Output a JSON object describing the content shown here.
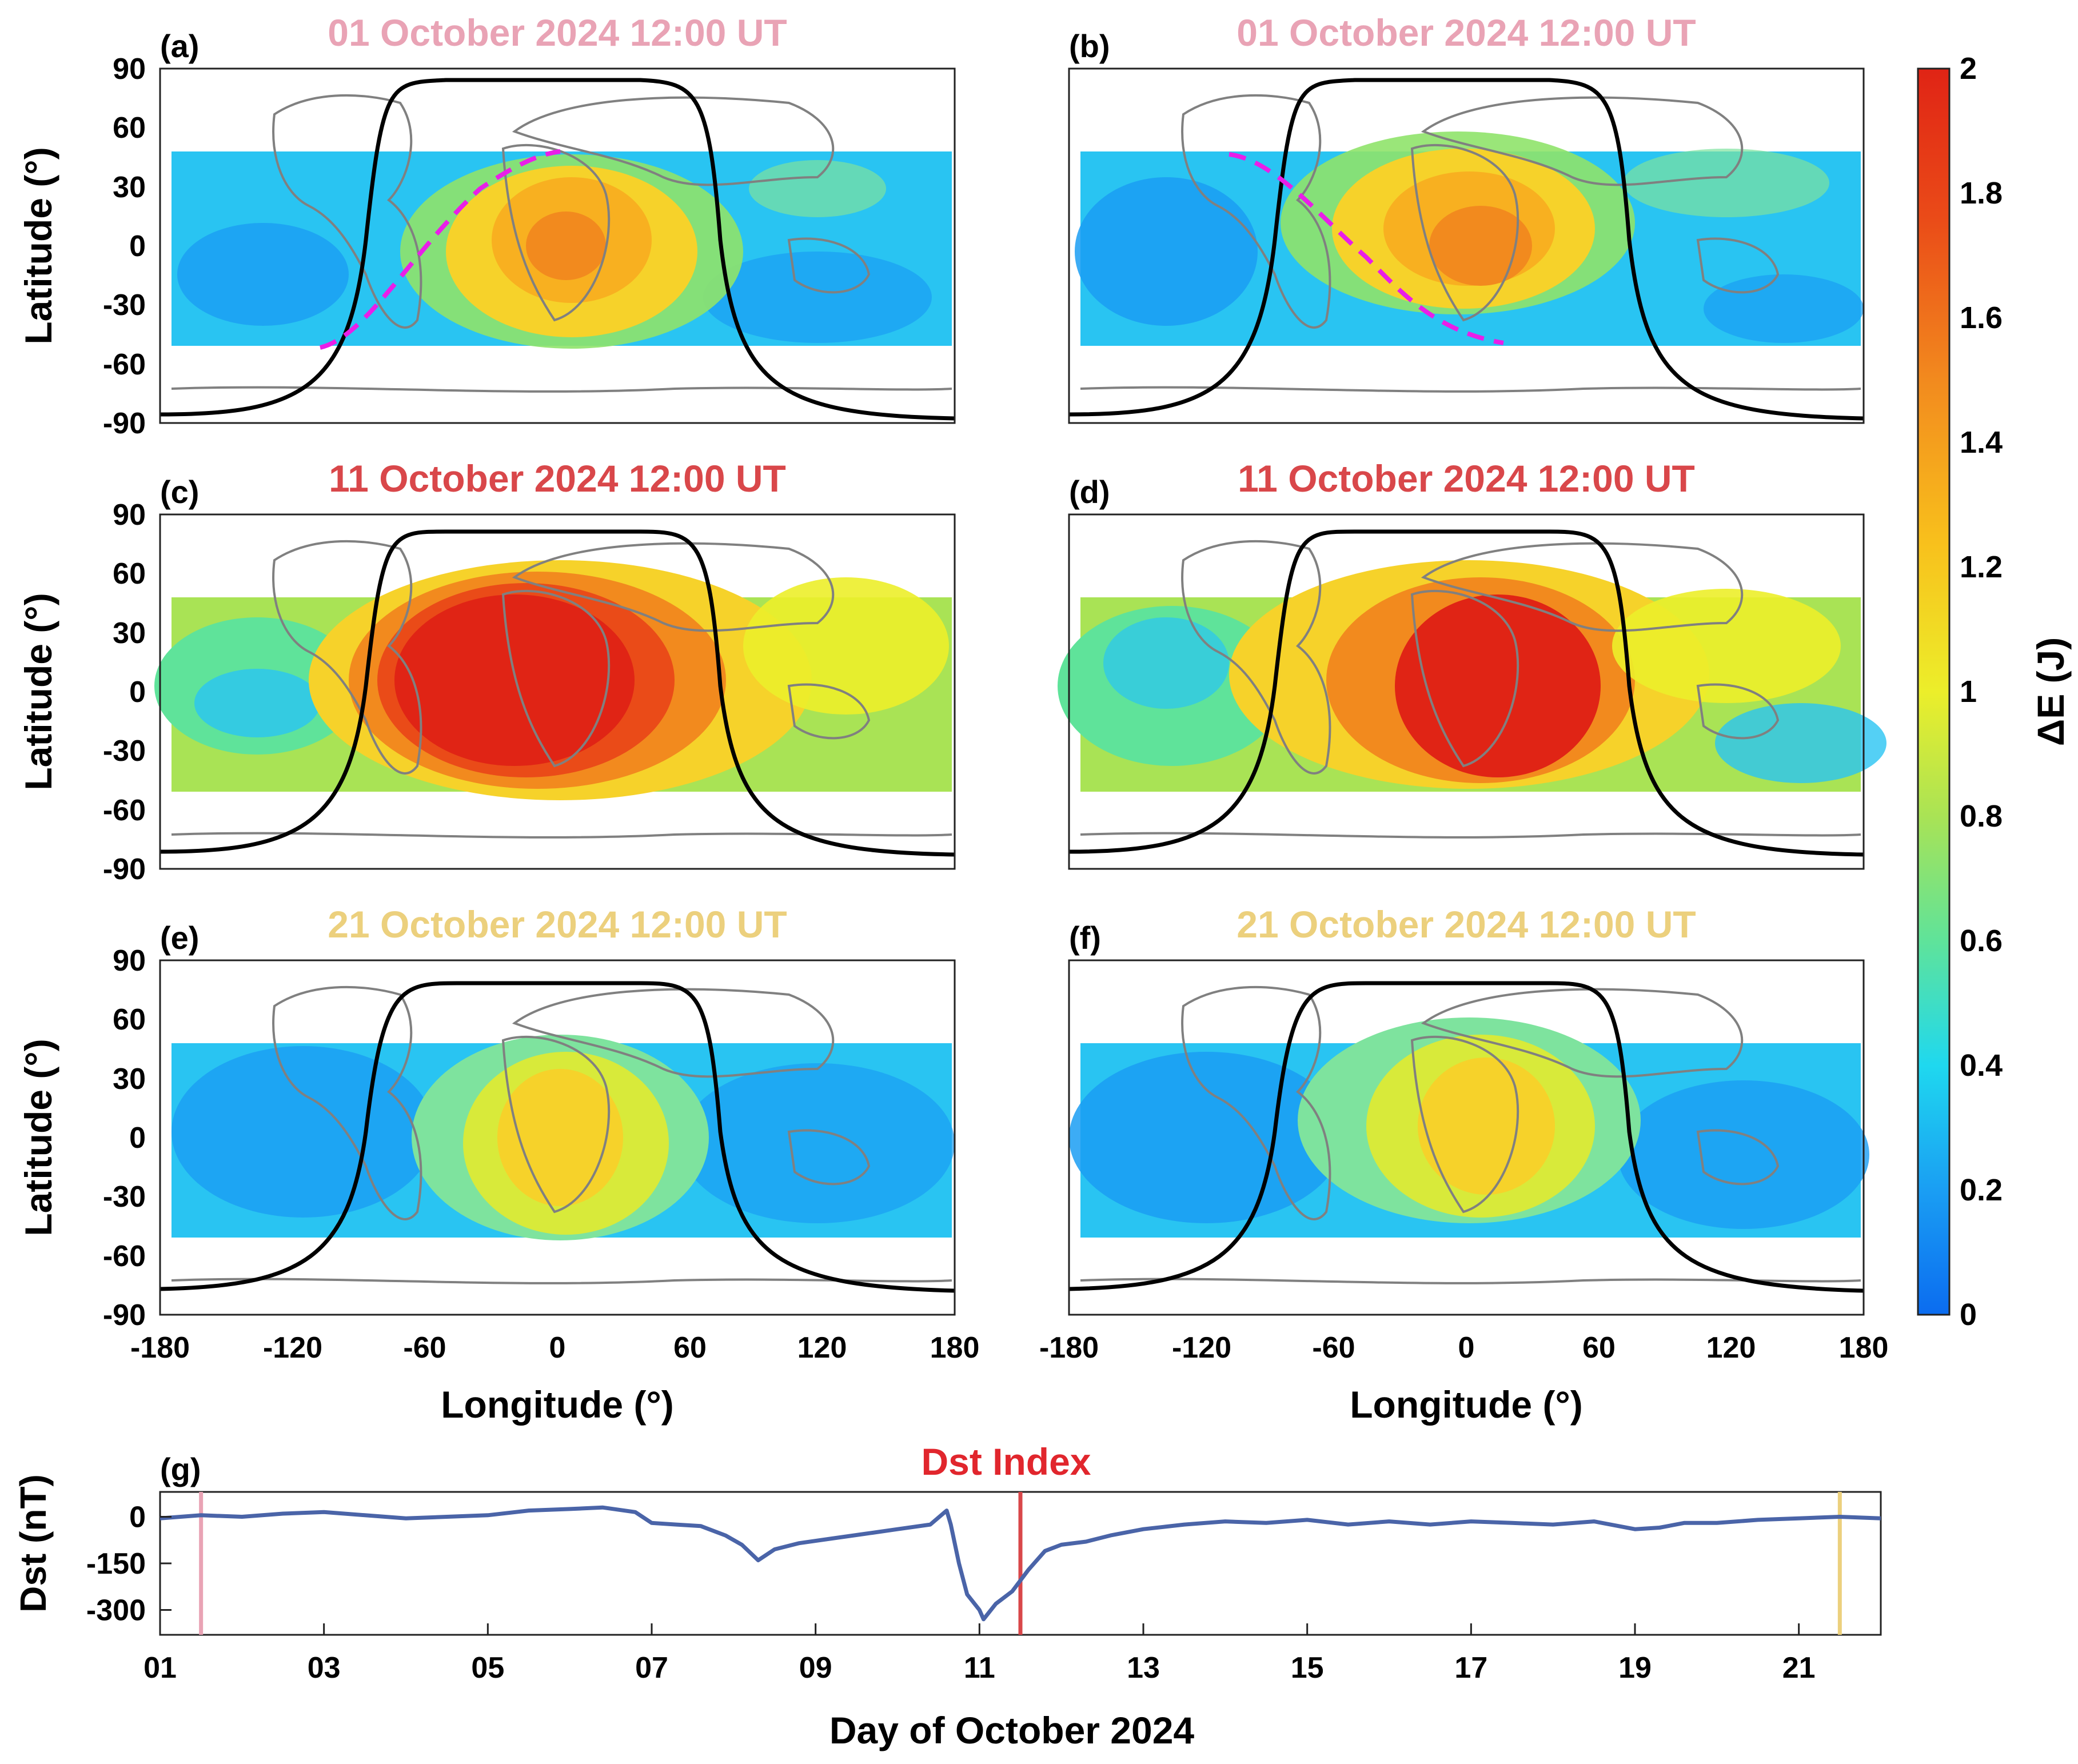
{
  "panels": [
    {
      "tag": "(a)",
      "title": "01 October 2024 12:00 UT",
      "title_color": "#e9a3b5",
      "has_terminator": true,
      "terminator_dir": "rising"
    },
    {
      "tag": "(b)",
      "title": "01 October 2024 12:00 UT",
      "title_color": "#e9a3b5",
      "has_terminator": true,
      "terminator_dir": "falling"
    },
    {
      "tag": "(c)",
      "title": "11 October 2024 12:00 UT",
      "title_color": "#d9474a"
    },
    {
      "tag": "(d)",
      "title": "11 October 2024 12:00 UT",
      "title_color": "#d9474a"
    },
    {
      "tag": "(e)",
      "title": "21 October 2024 12:00 UT",
      "title_color": "#ecd07d"
    },
    {
      "tag": "(f)",
      "title": "21 October 2024 12:00 UT",
      "title_color": "#ecd07d"
    }
  ],
  "map_axes": {
    "ylabel": "Latitude (°)",
    "xlabel": "Longitude (°)",
    "y_ticks": [
      "90",
      "60",
      "30",
      "0",
      "-30",
      "-60",
      "-90"
    ],
    "x_ticks": [
      "-180",
      "-120",
      "-60",
      "0",
      "60",
      "120",
      "180"
    ]
  },
  "colorbar": {
    "label": "ΔE (J)",
    "ticks": [
      "2",
      "1.8",
      "1.6",
      "1.4",
      "1.2",
      "1",
      "0.8",
      "0.6",
      "0.4",
      "0.2",
      "0"
    ],
    "colors": [
      "#0b6cf0",
      "#1a9ef3",
      "#1fd8ef",
      "#5fe39a",
      "#a9e355",
      "#ecee2a",
      "#f8c01c",
      "#f28a1e",
      "#ea4b18",
      "#e02415"
    ]
  },
  "dst_panel": {
    "tag": "(g)",
    "title": "Dst Index",
    "title_color": "#e1262d",
    "ylabel": "Dst (nT)",
    "y_ticks": [
      "0",
      "-150",
      "-300"
    ],
    "xlabel": "Day of October 2024",
    "x_ticks": [
      "01",
      "03",
      "05",
      "07",
      "09",
      "11",
      "13",
      "15",
      "17",
      "19",
      "21"
    ],
    "marker_colors": [
      "#e9a3b5",
      "#d9474a",
      "#ecd07d"
    ]
  },
  "chart_data": {
    "type": "line",
    "title": "Dst Index",
    "xlabel": "Day of October 2024",
    "ylabel": "Dst (nT)",
    "xlim": [
      1,
      22
    ],
    "ylim": [
      -380,
      80
    ],
    "x": [
      1.0,
      1.5,
      2.0,
      2.5,
      3.0,
      3.5,
      4.0,
      4.5,
      5.0,
      5.5,
      6.0,
      6.4,
      6.8,
      7.0,
      7.3,
      7.6,
      7.9,
      8.1,
      8.3,
      8.5,
      8.8,
      9.2,
      9.6,
      10.0,
      10.4,
      10.6,
      10.65,
      10.75,
      10.85,
      11.0,
      11.05,
      11.2,
      11.4,
      11.6,
      11.8,
      12.0,
      12.3,
      12.6,
      13.0,
      13.5,
      14.0,
      14.5,
      15.0,
      15.5,
      16.0,
      16.5,
      17.0,
      17.5,
      18.0,
      18.5,
      19.0,
      19.3,
      19.6,
      20.0,
      20.5,
      21.0,
      21.5,
      22.0
    ],
    "values": [
      -5,
      5,
      0,
      10,
      15,
      5,
      -5,
      0,
      5,
      20,
      25,
      30,
      15,
      -20,
      -25,
      -30,
      -60,
      -90,
      -140,
      -105,
      -85,
      -70,
      -55,
      -40,
      -25,
      20,
      -25,
      -150,
      -250,
      -300,
      -330,
      -280,
      -240,
      -170,
      -110,
      -90,
      -80,
      -60,
      -40,
      -25,
      -15,
      -20,
      -10,
      -25,
      -15,
      -25,
      -15,
      -20,
      -25,
      -15,
      -40,
      -35,
      -20,
      -20,
      -10,
      -5,
      0,
      -5
    ],
    "markers": [
      1.5,
      11.5,
      21.5
    ]
  }
}
